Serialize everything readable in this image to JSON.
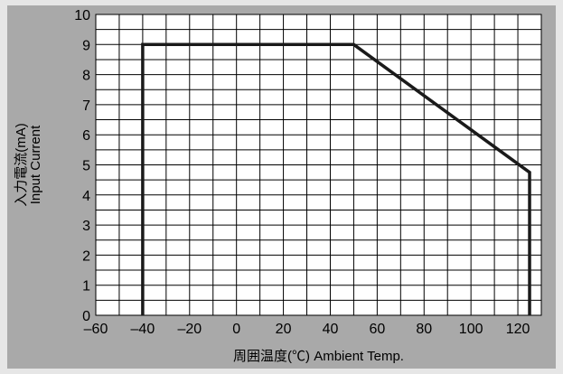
{
  "chart_data": {
    "type": "line",
    "xlabel": "周囲温度(℃) Ambient Temp.",
    "ylabel_line1": "入力電流(mA)",
    "ylabel_line2": "Input Current",
    "xlim": [
      -60,
      130
    ],
    "ylim": [
      0,
      10
    ],
    "x_ticks": [
      -60,
      -40,
      -20,
      0,
      20,
      40,
      60,
      80,
      100,
      120
    ],
    "y_ticks": [
      0,
      1,
      2,
      3,
      4,
      5,
      6,
      7,
      8,
      9,
      10
    ],
    "grid": true,
    "series": [
      {
        "x": [
          -40,
          -40,
          50,
          125,
          125
        ],
        "y": [
          0,
          9,
          9,
          4.75,
          0
        ]
      }
    ],
    "colors": {
      "background": "#a9a9a9",
      "plot": "#ffffff",
      "line": "#1a1a1a",
      "page": "#e6e6e6"
    }
  }
}
